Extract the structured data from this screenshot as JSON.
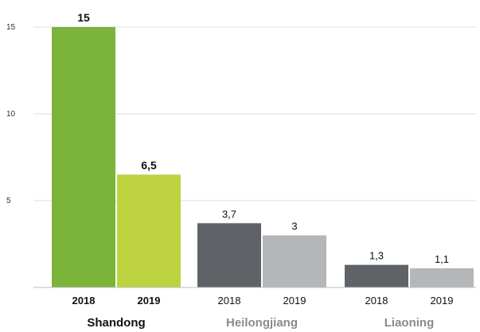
{
  "chart_data": {
    "type": "bar",
    "title": "",
    "xlabel": "",
    "ylabel": "",
    "ylim": [
      0,
      15
    ],
    "yticks": [
      "5",
      "10",
      "15"
    ],
    "grid": true,
    "legend": "none",
    "groups": [
      {
        "name": "Shandong",
        "name_color": "#111111",
        "bars": [
          {
            "category": "2018",
            "value": 15,
            "label": "15",
            "color": "#7cb33a",
            "emphasis": true
          },
          {
            "category": "2019",
            "value": 6.5,
            "label": "6,5",
            "color": "#bcd33f",
            "emphasis": true
          }
        ]
      },
      {
        "name": "Heilongjiang",
        "name_color": "#8a8a8a",
        "bars": [
          {
            "category": "2018",
            "value": 3.7,
            "label": "3,7",
            "color": "#5f6367",
            "emphasis": false
          },
          {
            "category": "2019",
            "value": 3,
            "label": "3",
            "color": "#b4b6b8",
            "emphasis": false
          }
        ]
      },
      {
        "name": "Liaoning",
        "name_color": "#8a8a8a",
        "bars": [
          {
            "category": "2018",
            "value": 1.3,
            "label": "1,3",
            "color": "#5f6367",
            "emphasis": false
          },
          {
            "category": "2019",
            "value": 1.1,
            "label": "1,1",
            "color": "#b4b6b8",
            "emphasis": false
          }
        ]
      }
    ]
  }
}
